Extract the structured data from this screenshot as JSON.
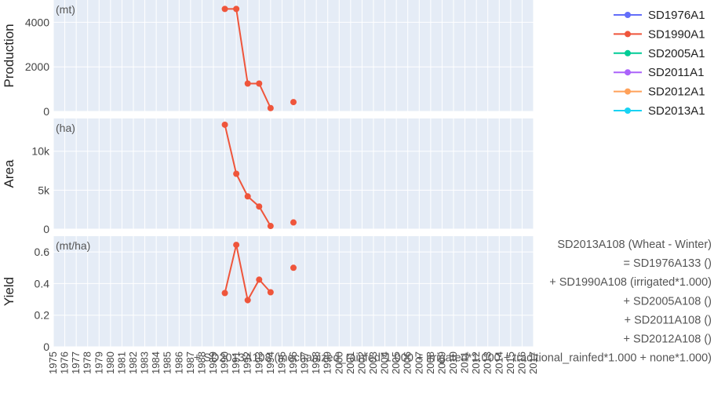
{
  "chart_data": {
    "type": "line",
    "x_years": [
      1975,
      1976,
      1977,
      1978,
      1979,
      1980,
      1981,
      1982,
      1983,
      1984,
      1985,
      1986,
      1987,
      1988,
      1989,
      1990,
      1991,
      1992,
      1993,
      1994,
      1995,
      1996,
      1997,
      1998,
      1999,
      2000,
      2001,
      2002,
      2003,
      2004,
      2005,
      2006,
      2007,
      2008,
      2009,
      2010,
      2011,
      2012,
      2013,
      2014,
      2015,
      2016,
      2017
    ],
    "x_range": [
      1975,
      2017
    ],
    "legend": [
      {
        "name": "SD1976A1",
        "color": "#636efa"
      },
      {
        "name": "SD1990A1",
        "color": "#ef553b"
      },
      {
        "name": "SD2005A1",
        "color": "#00cc96"
      },
      {
        "name": "SD2011A1",
        "color": "#ab63fa"
      },
      {
        "name": "SD2012A1",
        "color": "#ffa15a"
      },
      {
        "name": "SD2013A1",
        "color": "#19d3f3"
      }
    ],
    "legend_position": "top-right",
    "grid": true,
    "panels": [
      {
        "id": "production",
        "ylabel": "Production",
        "unit": "(mt)",
        "ylim": [
          0,
          5000
        ],
        "yticks": [
          0,
          2000,
          4000
        ],
        "ytick_labels": [
          "0",
          "2000",
          "4000"
        ],
        "series": [
          {
            "name": "SD1990A1",
            "color": "#ef553b",
            "x": [
              1990,
              1991,
              1992,
              1993,
              1994,
              1996
            ],
            "y": [
              4600,
              4600,
              1250,
              1250,
              150,
              420
            ]
          }
        ]
      },
      {
        "id": "area",
        "ylabel": "Area",
        "unit": "(ha)",
        "ylim": [
          0,
          14200
        ],
        "yticks": [
          0,
          5000,
          10000
        ],
        "ytick_labels": [
          "0",
          "5k",
          "10k"
        ],
        "series": [
          {
            "name": "SD1990A1",
            "color": "#ef553b",
            "x": [
              1990,
              1991,
              1992,
              1993,
              1994,
              1996
            ],
            "y": [
              13400,
              7100,
              4200,
              2900,
              400,
              850
            ]
          }
        ]
      },
      {
        "id": "yield",
        "ylabel": "Yield",
        "unit": "(mt/ha)",
        "ylim": [
          0,
          0.7
        ],
        "yticks": [
          0,
          0.2,
          0.4,
          0.6
        ],
        "ytick_labels": [
          "0",
          "0.2",
          "0.4",
          "0.6"
        ],
        "series": [
          {
            "name": "SD1990A1",
            "color": "#ef553b",
            "x": [
              1990,
              1991,
              1992,
              1993,
              1994,
              1996
            ],
            "y": [
              0.34,
              0.645,
              0.295,
              0.425,
              0.345,
              0.5
            ]
          }
        ]
      }
    ],
    "annotations": [
      "SD2013A108 (Wheat - Winter)",
      "= SD1976A133 ()",
      "+ SD1990A108 (irrigated*1.000)",
      "+ SD2005A108 ()",
      "+ SD2011A108 ()",
      "+ SD2012A108 ()",
      "+ SD2013A108 (mechanized_rainfed*1.000 + irrigated*1.000 + traditional_rainfed*1.000 + none*1.000)"
    ]
  }
}
